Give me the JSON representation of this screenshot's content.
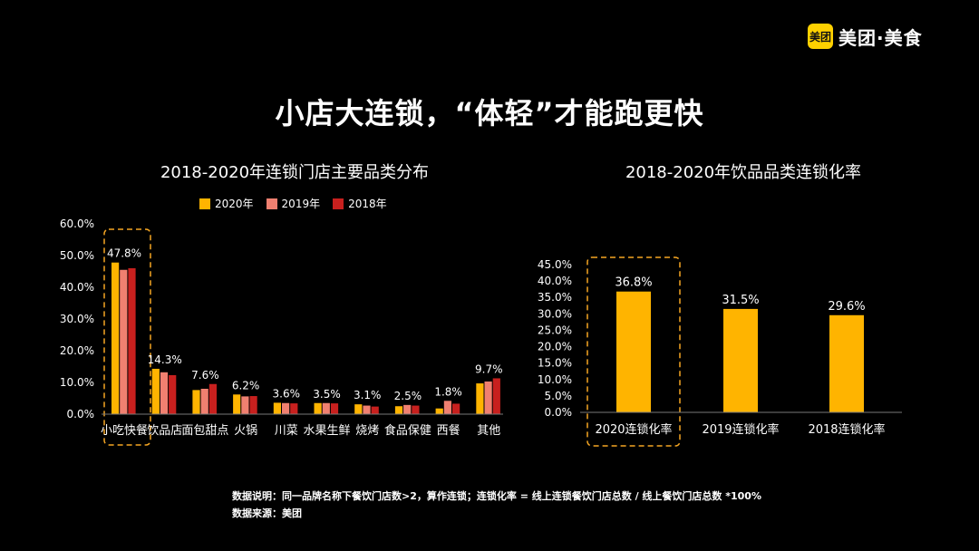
{
  "brand": {
    "badge": "美团",
    "name": "美团·美食",
    "color": "#FFD100"
  },
  "title": "小店大连锁，“体轻”才能跑更快",
  "footnotes": {
    "note": "数据说明：同一品牌名称下餐饮门店数>2，算作连锁；连锁化率 = 线上连锁餐饮门店总数 / 线上餐饮门店总数 *100%",
    "source": "数据来源：美团"
  },
  "chart_data": [
    {
      "type": "bar",
      "title": "2018-2020年连锁门店主要品类分布",
      "categories": [
        "小吃快餐",
        "饮品店",
        "面包甜点",
        "火锅",
        "川菜",
        "水果生鲜",
        "烧烤",
        "食品保健",
        "西餐",
        "其他"
      ],
      "series": [
        {
          "name": "2020年",
          "color": "#FFB400",
          "values": [
            47.8,
            14.3,
            7.6,
            6.2,
            3.6,
            3.5,
            3.1,
            2.5,
            1.8,
            9.7
          ]
        },
        {
          "name": "2019年",
          "color": "#F08070",
          "values": [
            45.5,
            13.2,
            8.0,
            5.6,
            3.5,
            3.5,
            2.7,
            2.9,
            4.2,
            10.3
          ]
        },
        {
          "name": "2018年",
          "color": "#C8201E",
          "values": [
            46.0,
            12.3,
            9.5,
            5.7,
            3.4,
            3.4,
            2.4,
            2.7,
            3.3,
            11.3
          ]
        }
      ],
      "data_labels": [
        "47.8%",
        "14.3%",
        "7.6%",
        "6.2%",
        "3.6%",
        "3.5%",
        "3.1%",
        "2.5%",
        "1.8%",
        "9.7%"
      ],
      "yticks": [
        "0.0%",
        "10.0%",
        "20.0%",
        "30.0%",
        "40.0%",
        "50.0%",
        "60.0%"
      ],
      "ylim": [
        0,
        60
      ],
      "legend_position": "top",
      "highlight": "小吃快餐",
      "grid": false
    },
    {
      "type": "bar",
      "title": "2018-2020年饮品品类连锁化率",
      "categories": [
        "2020连锁化率",
        "2019连锁化率",
        "2018连锁化率"
      ],
      "values": [
        36.8,
        31.5,
        29.6
      ],
      "color": "#FFB400",
      "data_labels": [
        "36.8%",
        "31.5%",
        "29.6%"
      ],
      "yticks": [
        "0.0%",
        "5.0%",
        "10.0%",
        "15.0%",
        "20.0%",
        "25.0%",
        "30.0%",
        "35.0%",
        "40.0%",
        "45.0%"
      ],
      "ylim": [
        0,
        45
      ],
      "highlight": "2020连锁化率",
      "grid": false
    }
  ]
}
